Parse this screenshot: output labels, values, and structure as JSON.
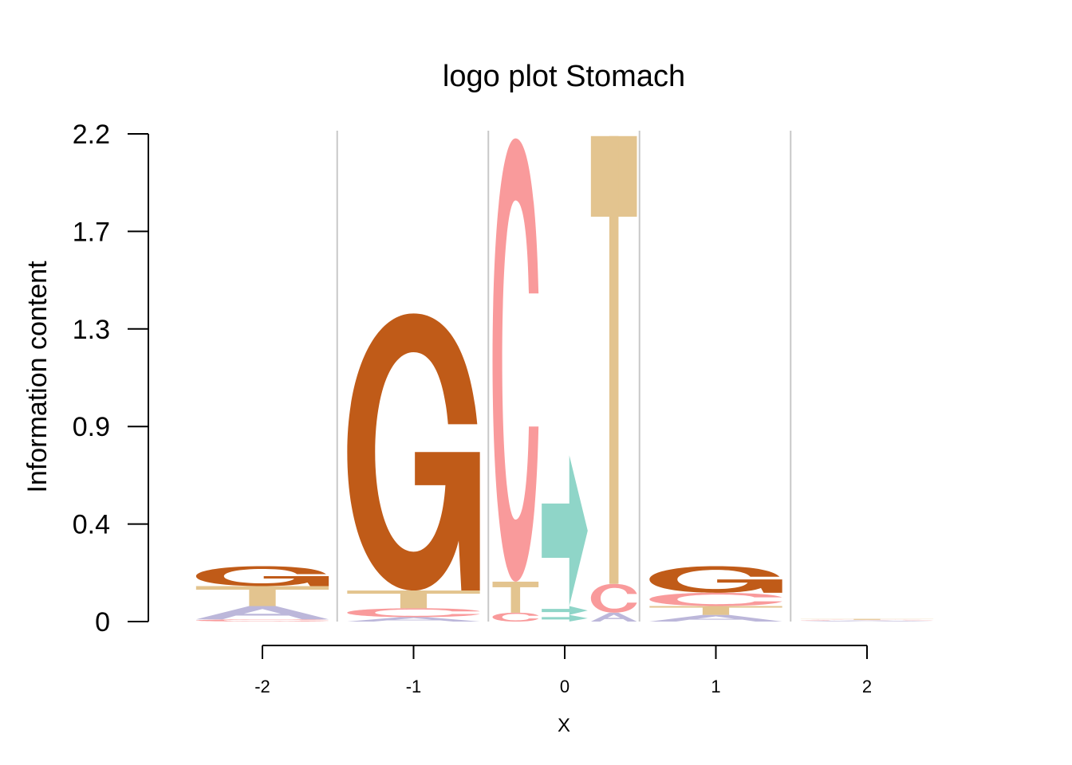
{
  "chart_data": {
    "type": "logo",
    "title": "logo plot Stomach",
    "xlabel": "X",
    "ylabel": "Information content",
    "ylim": [
      0,
      2.2
    ],
    "y_ticks": [
      "0",
      "0.4",
      "0.9",
      "1.3",
      "1.7",
      "2.2"
    ],
    "x_ticks": [
      "-2",
      "-1",
      "0",
      "1",
      "2"
    ],
    "grid": "vertical separators between positions",
    "colors": {
      "A": "#bcb7da",
      "C": "#f99a9b",
      "G": "#c05b18",
      "T": "#e3c48f",
      "C>T": "#8fd5c8"
    },
    "positions": [
      {
        "x": "-2",
        "stacks": [
          {
            "width": 1,
            "letters": [
              {
                "letter": "C",
                "value": 0.01
              },
              {
                "letter": "A",
                "value": 0.06
              },
              {
                "letter": "T",
                "value": 0.09
              },
              {
                "letter": "G",
                "value": 0.09
              }
            ]
          }
        ]
      },
      {
        "x": "-1",
        "stacks": [
          {
            "width": 1,
            "letters": [
              {
                "letter": "A",
                "value": 0.02
              },
              {
                "letter": "C",
                "value": 0.04
              },
              {
                "letter": "T",
                "value": 0.08
              },
              {
                "letter": "G",
                "value": 1.25
              }
            ]
          }
        ]
      },
      {
        "x": "0",
        "stacks": [
          {
            "width": 0.25,
            "letters": [
              {
                "letter": "C",
                "value": 0.04
              },
              {
                "letter": "T",
                "value": 0.14
              },
              {
                "letter": "C",
                "value": 2.0
              }
            ]
          },
          {
            "width": 0.25,
            "letters": [
              {
                "letter": "C>T",
                "value": 0.03
              },
              {
                "letter": "C>T",
                "value": 0.04
              },
              {
                "letter": "C>T",
                "value": 0.68
              }
            ]
          },
          {
            "width": 0.25,
            "letters": [
              {
                "letter": "A",
                "value": 0.04
              },
              {
                "letter": "C",
                "value": 0.13
              },
              {
                "letter": "T",
                "value": 2.02
              }
            ]
          }
        ]
      },
      {
        "x": "1",
        "stacks": [
          {
            "width": 1,
            "letters": [
              {
                "letter": "A",
                "value": 0.03
              },
              {
                "letter": "T",
                "value": 0.04
              },
              {
                "letter": "C",
                "value": 0.06
              },
              {
                "letter": "G",
                "value": 0.12
              }
            ]
          }
        ]
      },
      {
        "x": "2",
        "stacks": [
          {
            "width": 1,
            "letters": [
              {
                "letter": "A",
                "value": 0.005
              },
              {
                "letter": "C",
                "value": 0.003
              },
              {
                "letter": "T",
                "value": 0.004
              }
            ]
          }
        ]
      }
    ]
  }
}
